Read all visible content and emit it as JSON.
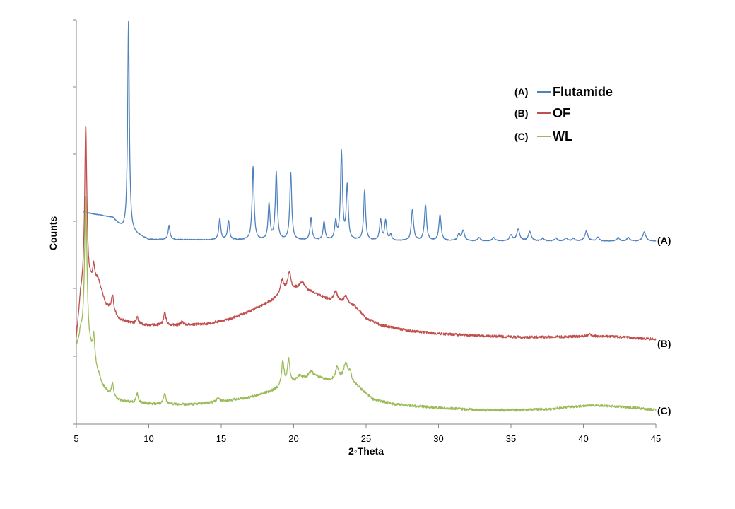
{
  "chart_data": {
    "type": "line",
    "title": "",
    "xlabel": "2◦Theta",
    "ylabel": "Counts",
    "xlim": [
      5,
      45
    ],
    "xticks": [
      "5",
      "10",
      "15",
      "20",
      "25",
      "30",
      "35",
      "40",
      "45"
    ],
    "y_tick_labels_shown": false,
    "grid": false,
    "legend_position": "top-right",
    "series": [
      {
        "name": "Flutamide",
        "code": "(A)",
        "curve_label": "(A)",
        "color": "#4f81bd",
        "baseline": [
          [
            5.5,
            300
          ],
          [
            7.5,
            308
          ],
          [
            8.2,
            324
          ],
          [
            10,
            339
          ],
          [
            20,
            340
          ],
          [
            30,
            341
          ],
          [
            40,
            341
          ],
          [
            45,
            341
          ]
        ],
        "peaks": [
          [
            8.6,
            298,
            0.07
          ],
          [
            11.4,
            20,
            0.08
          ],
          [
            14.9,
            30,
            0.08
          ],
          [
            15.5,
            27,
            0.08
          ],
          [
            17.2,
            104,
            0.08
          ],
          [
            18.3,
            50,
            0.08
          ],
          [
            18.8,
            96,
            0.08
          ],
          [
            19.8,
            95,
            0.08
          ],
          [
            21.2,
            31,
            0.08
          ],
          [
            22.1,
            26,
            0.08
          ],
          [
            22.9,
            25,
            0.08
          ],
          [
            23.3,
            124,
            0.08
          ],
          [
            23.7,
            76,
            0.08
          ],
          [
            24.9,
            70,
            0.08
          ],
          [
            26.0,
            30,
            0.08
          ],
          [
            26.35,
            28,
            0.08
          ],
          [
            26.7,
            8,
            0.08
          ],
          [
            28.2,
            44,
            0.09
          ],
          [
            29.1,
            50,
            0.09
          ],
          [
            30.1,
            37,
            0.09
          ],
          [
            31.4,
            10,
            0.1
          ],
          [
            31.7,
            15,
            0.1
          ],
          [
            32.8,
            5,
            0.1
          ],
          [
            33.8,
            5,
            0.1
          ],
          [
            35.0,
            8,
            0.12
          ],
          [
            35.5,
            16,
            0.12
          ],
          [
            36.3,
            13,
            0.12
          ],
          [
            37.2,
            4,
            0.1
          ],
          [
            38.1,
            4,
            0.1
          ],
          [
            38.8,
            4,
            0.1
          ],
          [
            39.3,
            4,
            0.1
          ],
          [
            40.2,
            14,
            0.12
          ],
          [
            41.0,
            5,
            0.1
          ],
          [
            42.4,
            5,
            0.1
          ],
          [
            43.1,
            5,
            0.1
          ],
          [
            44.2,
            13,
            0.12
          ]
        ]
      },
      {
        "name": "OF",
        "code": "(B)",
        "curve_label": "(B)",
        "color": "#c0504d",
        "baseline": [
          [
            5.0,
            480
          ],
          [
            5.3,
            420
          ],
          [
            5.7,
            405
          ],
          [
            6.5,
            395
          ],
          [
            7.0,
            430
          ],
          [
            8.0,
            452
          ],
          [
            9.0,
            458
          ],
          [
            10.0,
            460
          ],
          [
            12.0,
            460
          ],
          [
            14.0,
            458
          ],
          [
            15.5,
            452
          ],
          [
            17.0,
            440
          ],
          [
            18.5,
            425
          ],
          [
            19.5,
            410
          ],
          [
            20.5,
            408
          ],
          [
            21.5,
            415
          ],
          [
            22.5,
            425
          ],
          [
            23.5,
            428
          ],
          [
            24.2,
            433
          ],
          [
            25.0,
            450
          ],
          [
            26.0,
            460
          ],
          [
            28.0,
            468
          ],
          [
            30.0,
            472
          ],
          [
            33.0,
            475
          ],
          [
            36.0,
            477
          ],
          [
            40.0,
            476
          ],
          [
            42.0,
            476
          ],
          [
            45.0,
            480
          ]
        ],
        "peaks": [
          [
            5.65,
            230,
            0.09
          ],
          [
            6.2,
            22,
            0.08
          ],
          [
            7.5,
            23,
            0.1
          ],
          [
            9.2,
            10,
            0.1
          ],
          [
            11.1,
            18,
            0.1
          ],
          [
            12.3,
            5,
            0.1
          ],
          [
            19.2,
            18,
            0.12
          ],
          [
            19.7,
            25,
            0.12
          ],
          [
            20.6,
            10,
            0.2
          ],
          [
            22.9,
            14,
            0.15
          ],
          [
            23.6,
            10,
            0.15
          ],
          [
            40.4,
            3,
            0.2
          ]
        ]
      },
      {
        "name": "WL",
        "code": "(C)",
        "curve_label": "(C)",
        "color": "#9bbb59",
        "baseline": [
          [
            5.0,
            494
          ],
          [
            5.3,
            475
          ],
          [
            6.0,
            500
          ],
          [
            6.8,
            545
          ],
          [
            7.5,
            565
          ],
          [
            9.0,
            570
          ],
          [
            11.0,
            572
          ],
          [
            13.0,
            572
          ],
          [
            15.0,
            568
          ],
          [
            17.0,
            562
          ],
          [
            18.5,
            553
          ],
          [
            19.5,
            545
          ],
          [
            20.5,
            536
          ],
          [
            21.5,
            533
          ],
          [
            22.5,
            538
          ],
          [
            23.5,
            535
          ],
          [
            24.3,
            545
          ],
          [
            25.5,
            565
          ],
          [
            27.0,
            572
          ],
          [
            30.0,
            577
          ],
          [
            33.0,
            580
          ],
          [
            36.0,
            580
          ],
          [
            38.0,
            578
          ],
          [
            40.5,
            573
          ],
          [
            42.5,
            575
          ],
          [
            45.0,
            580
          ]
        ],
        "peaks": [
          [
            5.65,
            210,
            0.1
          ],
          [
            6.2,
            35,
            0.08
          ],
          [
            7.5,
            22,
            0.1
          ],
          [
            9.2,
            13,
            0.1
          ],
          [
            11.1,
            15,
            0.1
          ],
          [
            14.8,
            5,
            0.15
          ],
          [
            19.25,
            35,
            0.1
          ],
          [
            19.65,
            35,
            0.1
          ],
          [
            20.4,
            5,
            0.15
          ],
          [
            21.2,
            8,
            0.2
          ],
          [
            23.0,
            18,
            0.12
          ],
          [
            23.6,
            22,
            0.15
          ],
          [
            23.9,
            12,
            0.12
          ]
        ]
      }
    ]
  }
}
